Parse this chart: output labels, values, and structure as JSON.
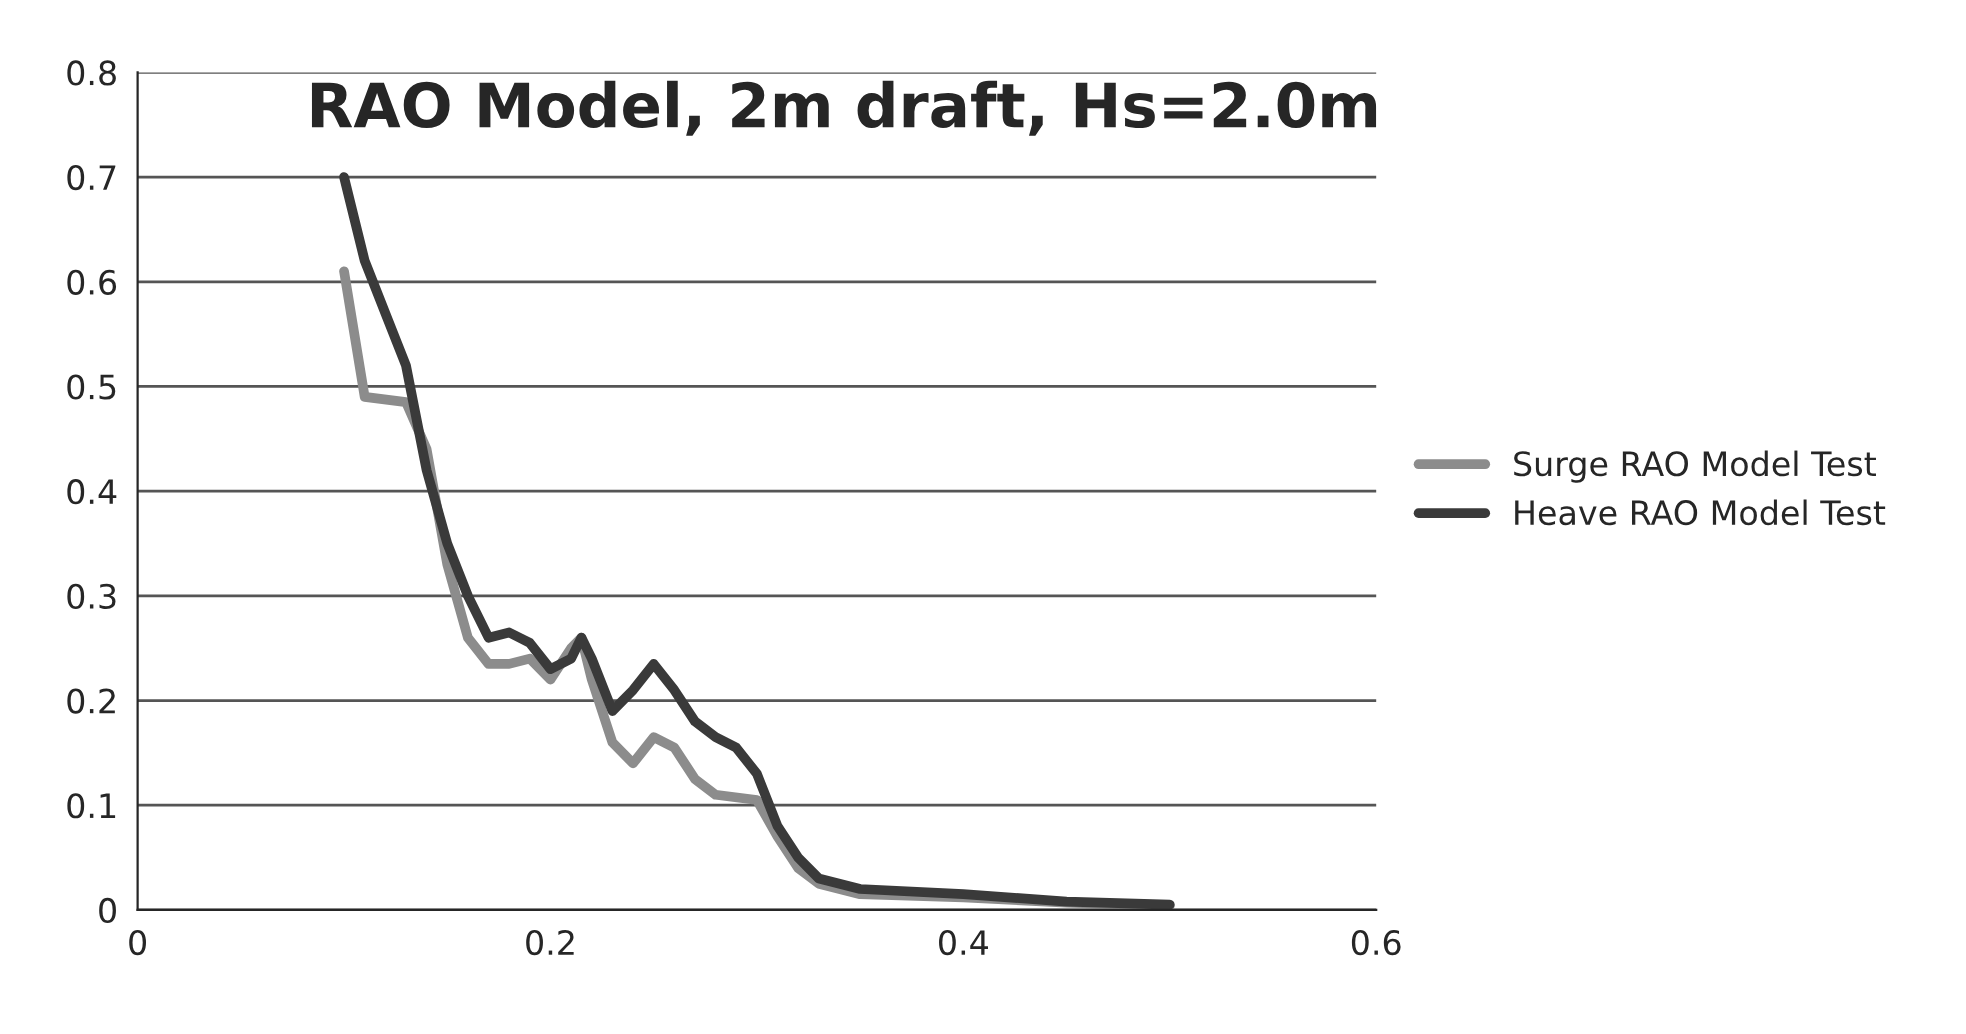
{
  "chart_data": {
    "type": "line",
    "title": "RAO Model, 2m draft, Hs=2.0m",
    "xlim": [
      0,
      0.6
    ],
    "xticks": [
      {
        "value": 0,
        "label": "0"
      },
      0.2,
      0.4,
      0.6
    ],
    "ylim": [
      0,
      0.8
    ],
    "yticks": [
      {
        "value": 0,
        "label": "0"
      },
      0.1,
      0.2,
      0.3,
      0.4,
      0.5,
      0.6,
      0.7,
      0.8
    ],
    "grid": "y",
    "legend": "right",
    "marker": "none",
    "line_style": "solid",
    "series": [
      {
        "name": "Surge RAO Model Test",
        "color": "#8c8c8c",
        "x": [
          0.1,
          0.11,
          0.13,
          0.14,
          0.15,
          0.16,
          0.17,
          0.18,
          0.19,
          0.2,
          0.21,
          0.215,
          0.22,
          0.23,
          0.24,
          0.25,
          0.26,
          0.27,
          0.28,
          0.3,
          0.31,
          0.32,
          0.33,
          0.35,
          0.4,
          0.45,
          0.5
        ],
        "values": [
          0.61,
          0.49,
          0.485,
          0.44,
          0.33,
          0.26,
          0.235,
          0.235,
          0.24,
          0.22,
          0.25,
          0.26,
          0.22,
          0.16,
          0.14,
          0.165,
          0.155,
          0.125,
          0.11,
          0.105,
          0.07,
          0.04,
          0.025,
          0.015,
          0.012,
          0.007,
          0.004
        ]
      },
      {
        "name": "Heave RAO Model Test",
        "color": "#3a3a3a",
        "x": [
          0.1,
          0.11,
          0.12,
          0.13,
          0.14,
          0.15,
          0.16,
          0.17,
          0.18,
          0.19,
          0.2,
          0.21,
          0.215,
          0.22,
          0.23,
          0.24,
          0.25,
          0.26,
          0.27,
          0.28,
          0.29,
          0.3,
          0.31,
          0.32,
          0.33,
          0.35,
          0.4,
          0.45,
          0.5
        ],
        "values": [
          0.7,
          0.62,
          0.57,
          0.52,
          0.42,
          0.35,
          0.3,
          0.26,
          0.265,
          0.255,
          0.23,
          0.24,
          0.26,
          0.24,
          0.19,
          0.21,
          0.235,
          0.21,
          0.18,
          0.165,
          0.155,
          0.13,
          0.08,
          0.05,
          0.03,
          0.02,
          0.015,
          0.008,
          0.005
        ]
      }
    ]
  }
}
